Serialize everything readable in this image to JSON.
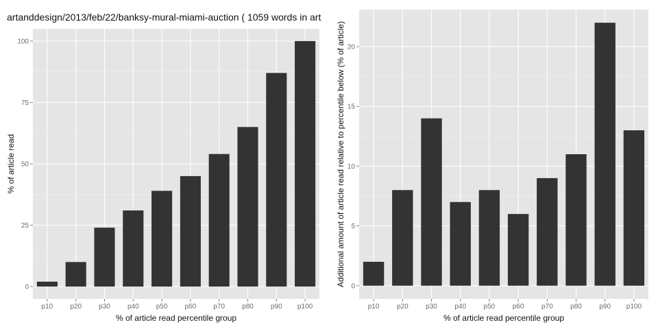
{
  "chart_data": [
    {
      "type": "bar",
      "title": "artanddesign/2013/feb/22/banksy-mural-miami-auction ( 1059 words in art",
      "xlabel": "% of article read percentile group",
      "ylabel": "% of article read",
      "categories": [
        "p10",
        "p20",
        "p30",
        "p40",
        "p50",
        "p60",
        "p70",
        "p80",
        "p90",
        "p100"
      ],
      "values": [
        2,
        10,
        24,
        31,
        39,
        45,
        54,
        65,
        87,
        100
      ],
      "ylim": [
        -5,
        105
      ],
      "yticks": [
        0,
        25,
        50,
        75,
        100
      ],
      "grid": true,
      "colors": {
        "bar": "#333333",
        "panel": "#e5e5e5"
      }
    },
    {
      "type": "bar",
      "title": "",
      "xlabel": "% of article read percentile group",
      "ylabel": "Additional amount of article read relative to percentile below (% of article)",
      "categories": [
        "p10",
        "p20",
        "p30",
        "p40",
        "p50",
        "p60",
        "p70",
        "p80",
        "p90",
        "p100"
      ],
      "values": [
        2,
        8,
        14,
        7,
        8,
        6,
        9,
        11,
        22,
        13
      ],
      "ylim": [
        -1.1,
        23.1
      ],
      "yticks": [
        0,
        5,
        10,
        15,
        20
      ],
      "grid": true,
      "colors": {
        "bar": "#333333",
        "panel": "#e5e5e5"
      }
    }
  ]
}
